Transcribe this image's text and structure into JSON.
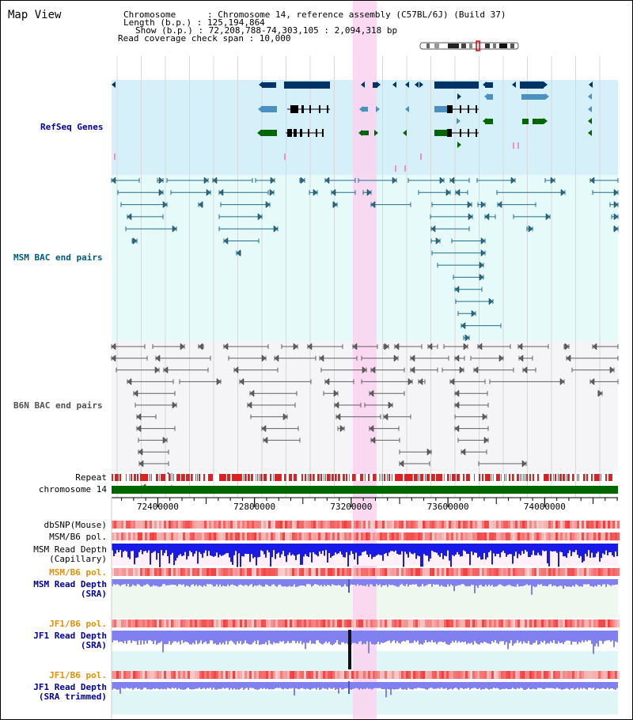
{
  "view_title": "Map View",
  "info": {
    "chromosome": "Chromosome      : Chromosome 14, reference assembly (C57BL/6J) (Build 37)",
    "length": "Length (b.p.) : 125,194,864",
    "show": "Show (b.p.) : 72,208,788-74,303,105 : 2,094,318 bp",
    "coverage": "Read coverage check span : 10,000"
  },
  "tracks": {
    "refseq": "RefSeq Genes",
    "msm_bac": "MSM BAC end pairs",
    "b6n_bac": "B6N BAC end pairs",
    "repeat": "Repeat",
    "chromosome": "chromosome 14",
    "dbsnp": "dbSNP(Mouse)",
    "msm_b6_pol_1": "MSM/B6 pol.",
    "msm_read_depth_cap_1": "MSM Read Depth",
    "msm_read_depth_cap_2": "(Capillary)",
    "msm_b6_pol_2": "MSM/B6 pol.",
    "msm_read_depth_sra_1": "MSM Read Depth",
    "msm_read_depth_sra_2": "(SRA)",
    "jf1_b6_pol_1": "JF1/B6 pol.",
    "jf1_read_depth_sra_1": "JF1 Read Depth",
    "jf1_read_depth_sra_2": "(SRA)",
    "jf1_b6_pol_2": "JF1/B6 pol.",
    "jf1_read_depth_trim_1": "JF1 Read Depth",
    "jf1_read_depth_trim_2": "(SRA trimmed)"
  },
  "axis": {
    "ticks": [
      {
        "pos": 72400000,
        "label": "72400000"
      },
      {
        "pos": 72800000,
        "label": "72800000"
      },
      {
        "pos": 73200000,
        "label": "73200000"
      },
      {
        "pos": 73600000,
        "label": "73600000"
      },
      {
        "pos": 74000000,
        "label": "74000000"
      }
    ]
  },
  "colors": {
    "refseq_bg": "#d6f0fa",
    "msm_bg": "#e6fafa",
    "b6n_bg": "#f5f5f8",
    "highlight": "#fad2f0",
    "gene_navy": "#003366",
    "gene_blue": "#4a90c0",
    "gene_green": "#006600",
    "bac_teal": "#1e6e8c",
    "bac_gray": "#606060",
    "chrom_green": "#006600",
    "depth_blue": "#1a1ae6",
    "depth_light": "#8080f0"
  }
}
